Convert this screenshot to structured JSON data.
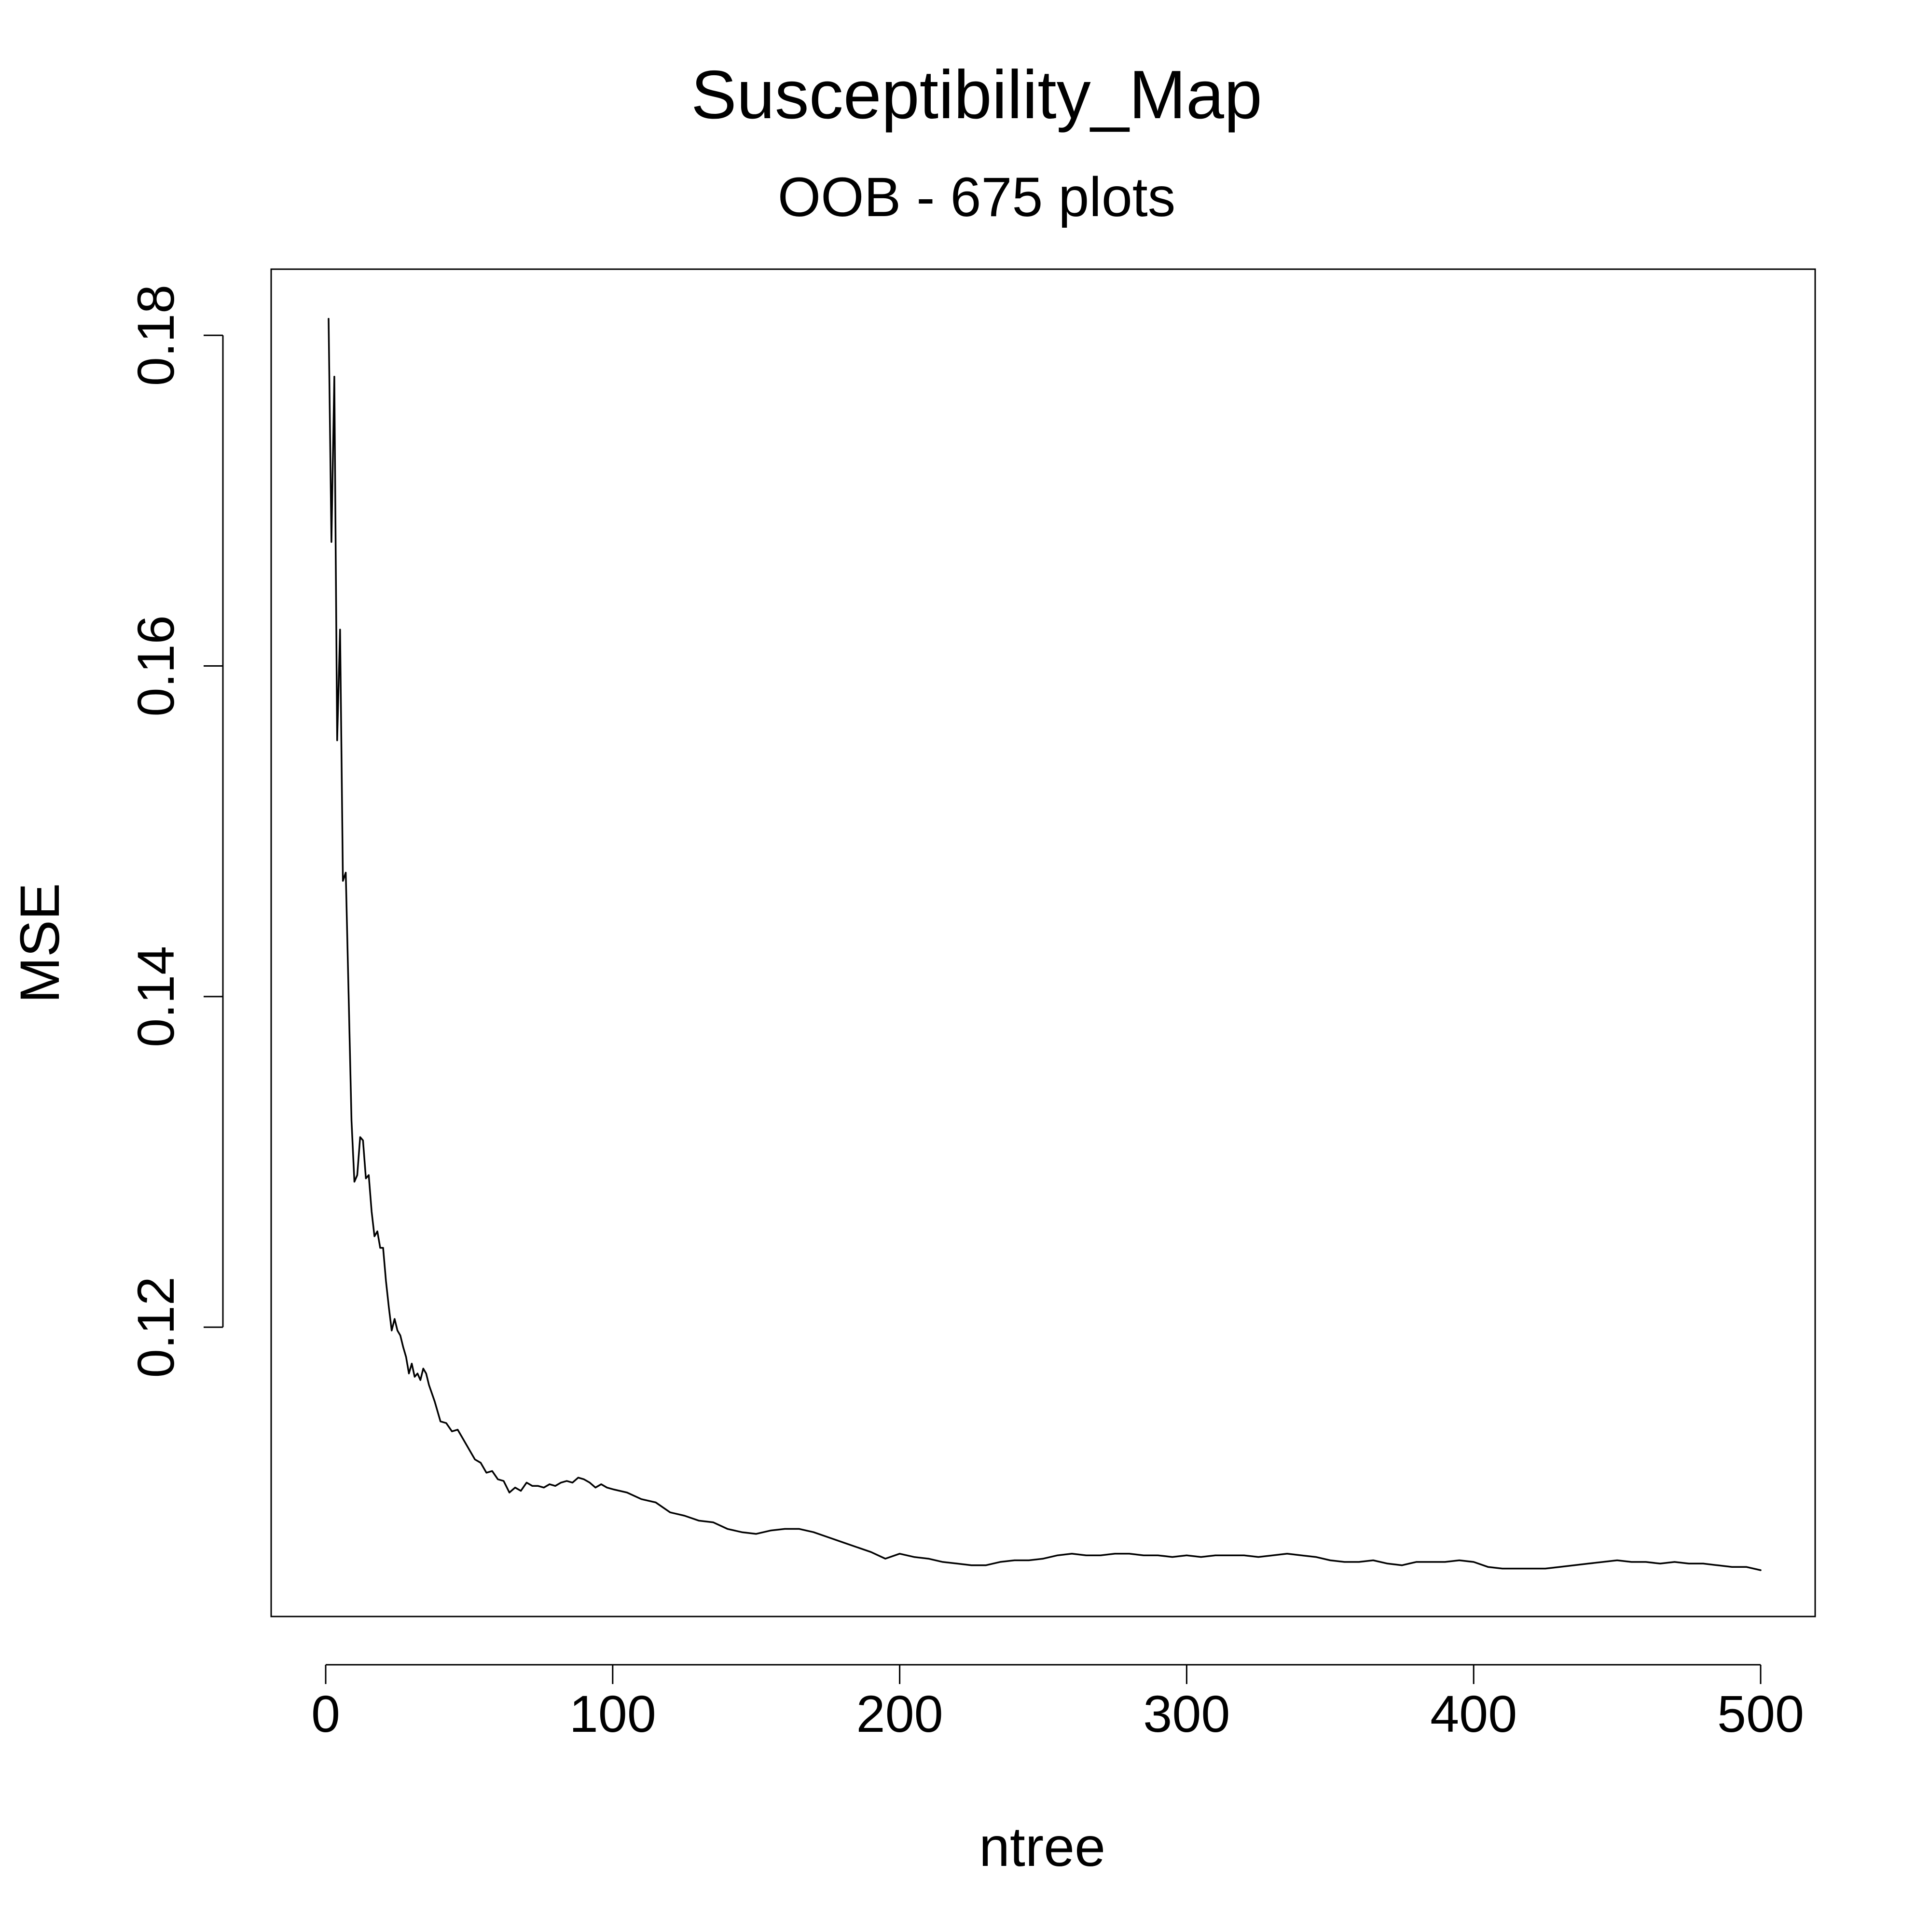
{
  "chart_data": {
    "type": "line",
    "title": "Susceptibility_Map",
    "subtitle": "OOB - 675 plots",
    "xlabel": "ntree",
    "ylabel": "MSE",
    "xlim": [
      -19,
      519
    ],
    "ylim": [
      0.1025,
      0.184
    ],
    "xticks": [
      0,
      100,
      200,
      300,
      400,
      500
    ],
    "yticks": [
      0.12,
      0.14,
      0.16,
      0.18
    ],
    "grid": false,
    "legend": "none",
    "series": [
      {
        "color": "#000000",
        "x": [
          1,
          2,
          3,
          4,
          5,
          6,
          7,
          8,
          9,
          10,
          11,
          12,
          13,
          14,
          15,
          16,
          17,
          18,
          19,
          20,
          21,
          22,
          23,
          24,
          25,
          26,
          27,
          28,
          29,
          30,
          31,
          32,
          33,
          34,
          35,
          36,
          37,
          38,
          40,
          42,
          44,
          46,
          48,
          50,
          52,
          54,
          56,
          58,
          60,
          62,
          64,
          66,
          68,
          70,
          72,
          74,
          76,
          78,
          80,
          82,
          84,
          86,
          88,
          90,
          92,
          94,
          96,
          98,
          100,
          105,
          110,
          115,
          120,
          125,
          130,
          135,
          140,
          145,
          150,
          155,
          160,
          165,
          170,
          175,
          180,
          185,
          190,
          195,
          200,
          205,
          210,
          215,
          220,
          225,
          230,
          235,
          240,
          245,
          250,
          255,
          260,
          265,
          270,
          275,
          280,
          285,
          290,
          295,
          300,
          305,
          310,
          315,
          320,
          325,
          330,
          335,
          340,
          345,
          350,
          355,
          360,
          365,
          370,
          375,
          380,
          385,
          390,
          395,
          400,
          405,
          410,
          415,
          420,
          425,
          430,
          435,
          440,
          445,
          450,
          455,
          460,
          465,
          470,
          475,
          480,
          485,
          490,
          495,
          500
        ],
        "y": [
          0.181,
          0.1675,
          0.1775,
          0.1555,
          0.1622,
          0.147,
          0.1475,
          0.14,
          0.1325,
          0.1288,
          0.1292,
          0.1315,
          0.1313,
          0.129,
          0.1292,
          0.127,
          0.1255,
          0.1258,
          0.1248,
          0.1248,
          0.1228,
          0.1212,
          0.1198,
          0.1205,
          0.1198,
          0.1195,
          0.1188,
          0.1182,
          0.1172,
          0.1178,
          0.117,
          0.1172,
          0.1168,
          0.1175,
          0.1172,
          0.1165,
          0.116,
          0.1155,
          0.1143,
          0.1142,
          0.1137,
          0.1138,
          0.1132,
          0.1126,
          0.112,
          0.1118,
          0.1112,
          0.1113,
          0.1108,
          0.1107,
          0.11,
          0.1103,
          0.1101,
          0.1106,
          0.1104,
          0.1104,
          0.1103,
          0.1105,
          0.1104,
          0.1106,
          0.1107,
          0.1106,
          0.1109,
          0.1108,
          0.1106,
          0.1103,
          0.1105,
          0.1103,
          0.1102,
          0.11,
          0.1096,
          0.1094,
          0.1088,
          0.1086,
          0.1083,
          0.1082,
          0.1078,
          0.1076,
          0.1075,
          0.1077,
          0.1078,
          0.1078,
          0.1076,
          0.1073,
          0.107,
          0.1067,
          0.1064,
          0.106,
          0.1063,
          0.1061,
          0.106,
          0.1058,
          0.1057,
          0.1056,
          0.1056,
          0.1058,
          0.1059,
          0.1059,
          0.106,
          0.1062,
          0.1063,
          0.1062,
          0.1062,
          0.1063,
          0.1063,
          0.1062,
          0.1062,
          0.1061,
          0.1062,
          0.1061,
          0.1062,
          0.1062,
          0.1062,
          0.1061,
          0.1062,
          0.1063,
          0.1062,
          0.1061,
          0.1059,
          0.1058,
          0.1058,
          0.1059,
          0.1057,
          0.1056,
          0.1058,
          0.1058,
          0.1058,
          0.1059,
          0.1058,
          0.1055,
          0.1054,
          0.1054,
          0.1054,
          0.1054,
          0.1055,
          0.1056,
          0.1057,
          0.1058,
          0.1059,
          0.1058,
          0.1058,
          0.1057,
          0.1058,
          0.1057,
          0.1057,
          0.1056,
          0.1055,
          0.1055,
          0.1053
        ]
      }
    ]
  }
}
